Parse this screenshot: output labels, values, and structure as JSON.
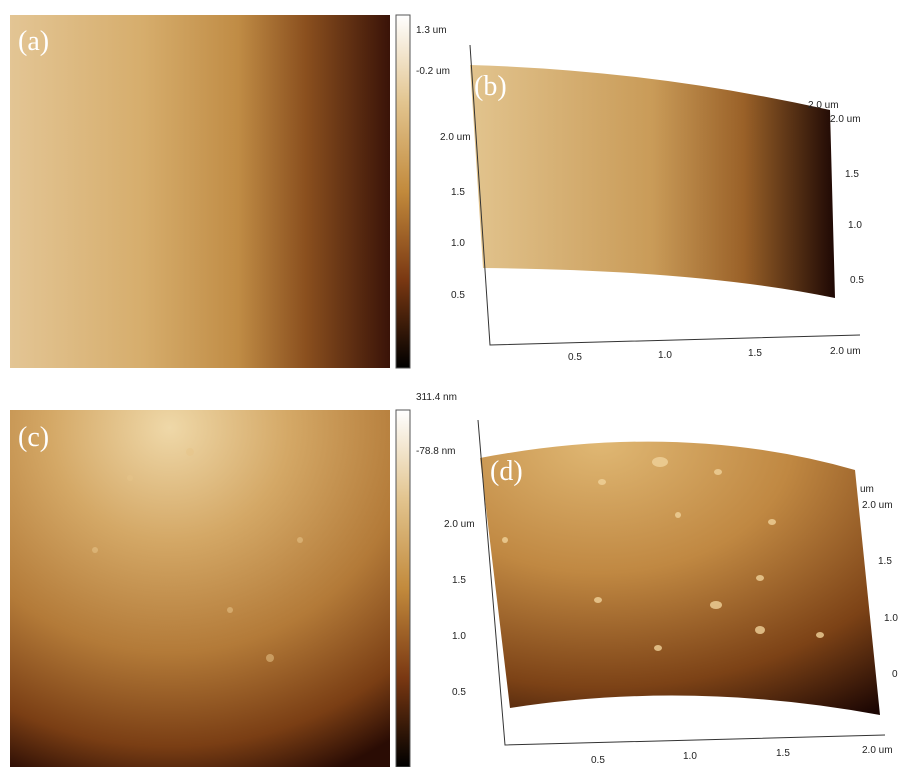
{
  "panels": [
    {
      "label": "(a)",
      "colorbar": {
        "max": "1.3 um",
        "min": "-0.2 um"
      }
    },
    {
      "label": "(b)",
      "axes": {
        "left": [
          "2.0 um",
          "1.5",
          "1.0",
          "0.5"
        ],
        "bottom": [
          "0.5",
          "1.0",
          "1.5",
          "2.0 um"
        ],
        "right": [
          "2.0 um",
          "2.0 um",
          "1.5",
          "1.0",
          "0.5"
        ]
      }
    },
    {
      "label": "(c)",
      "colorbar": {
        "max": "311.4 nm",
        "min": "-78.8 nm"
      }
    },
    {
      "label": "(d)",
      "axes": {
        "left": [
          "2.0 um",
          "1.5",
          "1.0",
          "0.5"
        ],
        "bottom": [
          "0.5",
          "1.0",
          "1.5",
          "2.0 um"
        ],
        "right": [
          "um",
          "2.0 um",
          "1.5",
          "1.0",
          "0"
        ]
      }
    }
  ]
}
